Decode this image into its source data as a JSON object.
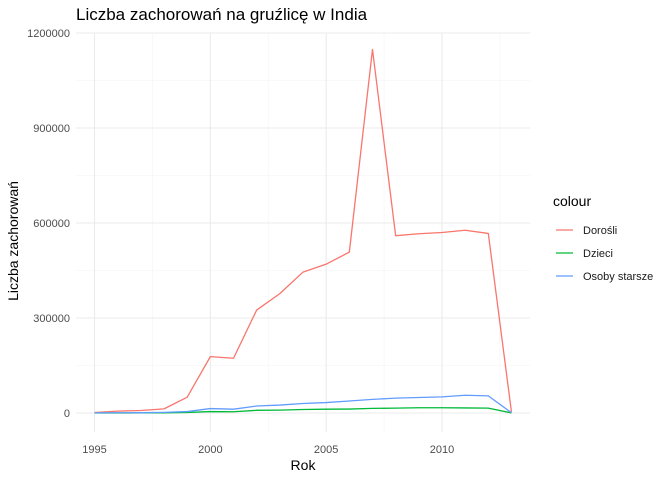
{
  "chart_data": {
    "type": "line",
    "title": "Liczba zachorowań na gruźlicę w India",
    "xlabel": "Rok",
    "ylabel": "Liczba zachorowań",
    "xlim": [
      1994.2,
      2013.8
    ],
    "ylim": [
      -60000,
      1200000
    ],
    "x_ticks": [
      1995,
      2000,
      2005,
      2010
    ],
    "x_tick_labels": [
      "1995",
      "2000",
      "2005",
      "2010"
    ],
    "y_ticks": [
      0,
      300000,
      600000,
      900000,
      1200000
    ],
    "y_tick_labels": [
      "0",
      "300000",
      "600000",
      "900000",
      "1200000"
    ],
    "grid": true,
    "legend_title": "colour",
    "legend_position": "right",
    "x": [
      1995,
      1996,
      1997,
      1998,
      1999,
      2000,
      2001,
      2002,
      2003,
      2004,
      2005,
      2006,
      2007,
      2008,
      2009,
      2010,
      2011,
      2012,
      2013
    ],
    "series": [
      {
        "name": "Dorośli",
        "color": "#F8766D",
        "values": [
          1500,
          6000,
          8000,
          13000,
          50000,
          178000,
          173000,
          325000,
          377000,
          445000,
          470000,
          508000,
          1148000,
          560000,
          566000,
          570000,
          577000,
          567000,
          3000
        ]
      },
      {
        "name": "Dzieci",
        "color": "#00BA38",
        "values": [
          0,
          200,
          300,
          500,
          1500,
          4500,
          4000,
          8500,
          9000,
          11000,
          12000,
          12500,
          14500,
          15500,
          16500,
          16500,
          16000,
          15500,
          200
        ]
      },
      {
        "name": "Osoby starsze",
        "color": "#619CFF",
        "values": [
          300,
          800,
          1000,
          2000,
          4500,
          14000,
          12000,
          22000,
          25000,
          30000,
          33000,
          38000,
          43000,
          47000,
          49000,
          51000,
          56000,
          54000,
          1000
        ]
      }
    ]
  }
}
